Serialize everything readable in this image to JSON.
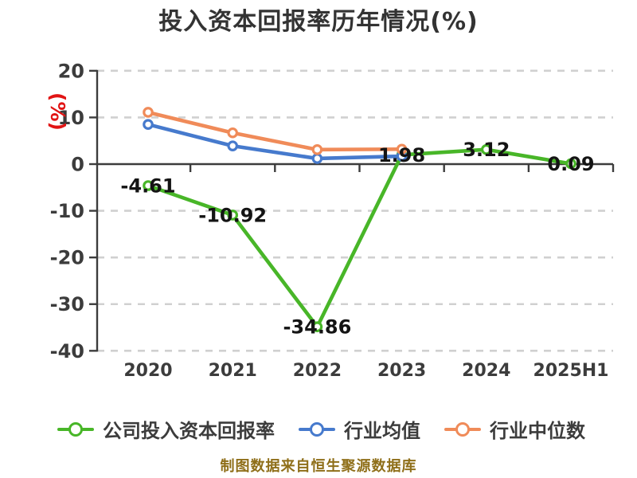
{
  "title": "投入资本回报率历年情况(%)",
  "footer": "制图数据来自恒生聚源数据库",
  "colors": {
    "company_green": "#48b628",
    "industry_avg_blue": "#467acd",
    "industry_median_orange": "#f08b59",
    "gridline": "#d0d0d0",
    "axis": "#3c3c3c",
    "tick_label": "#3c3c3c",
    "data_label": "#141414",
    "title_text": "#333333",
    "y_unit_red": "#e11414",
    "footer_gold": "#8f6f1a"
  },
  "chart_data": {
    "type": "line",
    "title": "投入资本回报率历年情况(%)",
    "ylabel": "(%)",
    "xlabel": "",
    "categories": [
      "2020",
      "2021",
      "2022",
      "2023",
      "2024",
      "2025H1"
    ],
    "series": [
      {
        "name": "公司投入资本回报率",
        "color": "#48b628",
        "values": [
          -4.61,
          -10.92,
          -34.86,
          1.98,
          3.12,
          0.09
        ],
        "point_labels": [
          "-4.61",
          "-10.92",
          "-34.86",
          "1.98",
          "3.12",
          "0.09"
        ]
      },
      {
        "name": "行业均值",
        "color": "#467acd",
        "values": [
          8.5,
          3.9,
          1.2,
          1.7,
          null,
          null
        ],
        "point_labels": null
      },
      {
        "name": "行业中位数",
        "color": "#f08b59",
        "values": [
          11.1,
          6.7,
          3.1,
          3.2,
          null,
          null
        ],
        "point_labels": null
      }
    ],
    "ylim": [
      -40,
      20
    ],
    "yticks": [
      20,
      10,
      0,
      -10,
      -20,
      -30,
      -40
    ],
    "grid": "dashed-horizontal",
    "legend_position": "bottom"
  }
}
